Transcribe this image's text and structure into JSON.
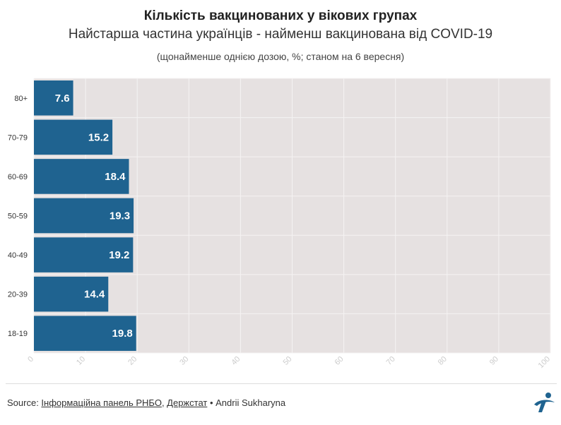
{
  "header": {
    "title": "Кількість вакцинованих у вікових групах",
    "subtitle": "Найстарша частина українців - найменш вакцинована від COVID-19",
    "note": "(щонайменше однією дозою, %; станом на 6 вересня)"
  },
  "colors": {
    "bar": "#1f6390",
    "plot_bg": "#e6e1e1",
    "grid": "#f5f3f3",
    "label": "#ffffff",
    "tick_text": "#cccccc"
  },
  "chart_data": {
    "type": "bar",
    "orientation": "horizontal",
    "categories": [
      "80+",
      "70-79",
      "60-69",
      "50-59",
      "40-49",
      "20-39",
      "18-19"
    ],
    "values": [
      7.6,
      15.2,
      18.4,
      19.3,
      19.2,
      14.4,
      19.8
    ],
    "data_labels": [
      "7.6",
      "15.2",
      "18.4",
      "19.3",
      "19.2",
      "14.4",
      "19.8"
    ],
    "xlim": [
      0,
      100
    ],
    "xticks": [
      0,
      10,
      20,
      30,
      40,
      50,
      60,
      70,
      80,
      90,
      100
    ],
    "grid": true,
    "legend": "none"
  },
  "footer": {
    "source_prefix": "Source: ",
    "link1": "Інформаційна панель РНБО",
    "separator": ", ",
    "link2": "Держстат",
    "suffix": " • Andrii Sukharyna"
  },
  "logo_icon": "publisher-logo-icon"
}
